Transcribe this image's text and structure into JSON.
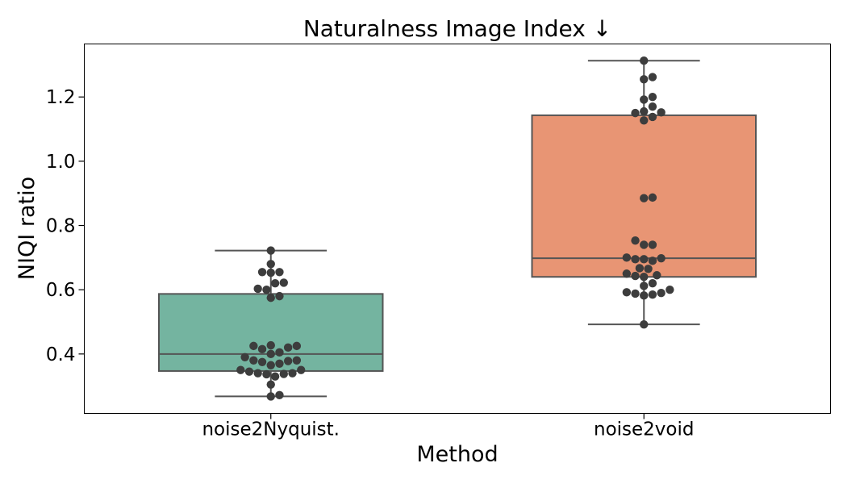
{
  "chart_data": {
    "type": "box",
    "title": "Naturalness Image Index ↓",
    "xlabel": "Method",
    "ylabel": "NIQI ratio",
    "ylim": [
      0.215,
      1.365
    ],
    "yticks": [
      0.4,
      0.6,
      0.8,
      1.0,
      1.2
    ],
    "ytick_labels": [
      "0.4",
      "0.6",
      "0.8",
      "1.0",
      "1.2"
    ],
    "grid": false,
    "categories": [
      "noise2Nyquist.",
      "noise2void"
    ],
    "series": [
      {
        "category": "noise2Nyquist.",
        "color": "#74b4a0",
        "whisker_low": 0.268,
        "q1": 0.347,
        "median": 0.4,
        "q3": 0.587,
        "whisker_high": 0.722,
        "points": [
          0.722,
          0.68,
          0.655,
          0.655,
          0.653,
          0.622,
          0.62,
          0.603,
          0.6,
          0.58,
          0.575,
          0.427,
          0.425,
          0.425,
          0.42,
          0.415,
          0.405,
          0.4,
          0.39,
          0.38,
          0.38,
          0.378,
          0.375,
          0.37,
          0.365,
          0.35,
          0.35,
          0.345,
          0.34,
          0.34,
          0.338,
          0.337,
          0.33,
          0.305,
          0.272,
          0.268
        ]
      },
      {
        "category": "noise2void",
        "color": "#e89574",
        "whisker_low": 0.492,
        "q1": 0.64,
        "median": 0.698,
        "q3": 1.143,
        "whisker_high": 1.313,
        "points": [
          1.313,
          1.262,
          1.255,
          1.2,
          1.192,
          1.17,
          1.155,
          1.152,
          1.15,
          1.138,
          1.127,
          0.887,
          0.885,
          0.753,
          0.74,
          0.74,
          0.7,
          0.698,
          0.695,
          0.695,
          0.69,
          0.667,
          0.665,
          0.65,
          0.645,
          0.643,
          0.64,
          0.62,
          0.612,
          0.6,
          0.592,
          0.59,
          0.588,
          0.585,
          0.582,
          0.492
        ]
      }
    ]
  }
}
